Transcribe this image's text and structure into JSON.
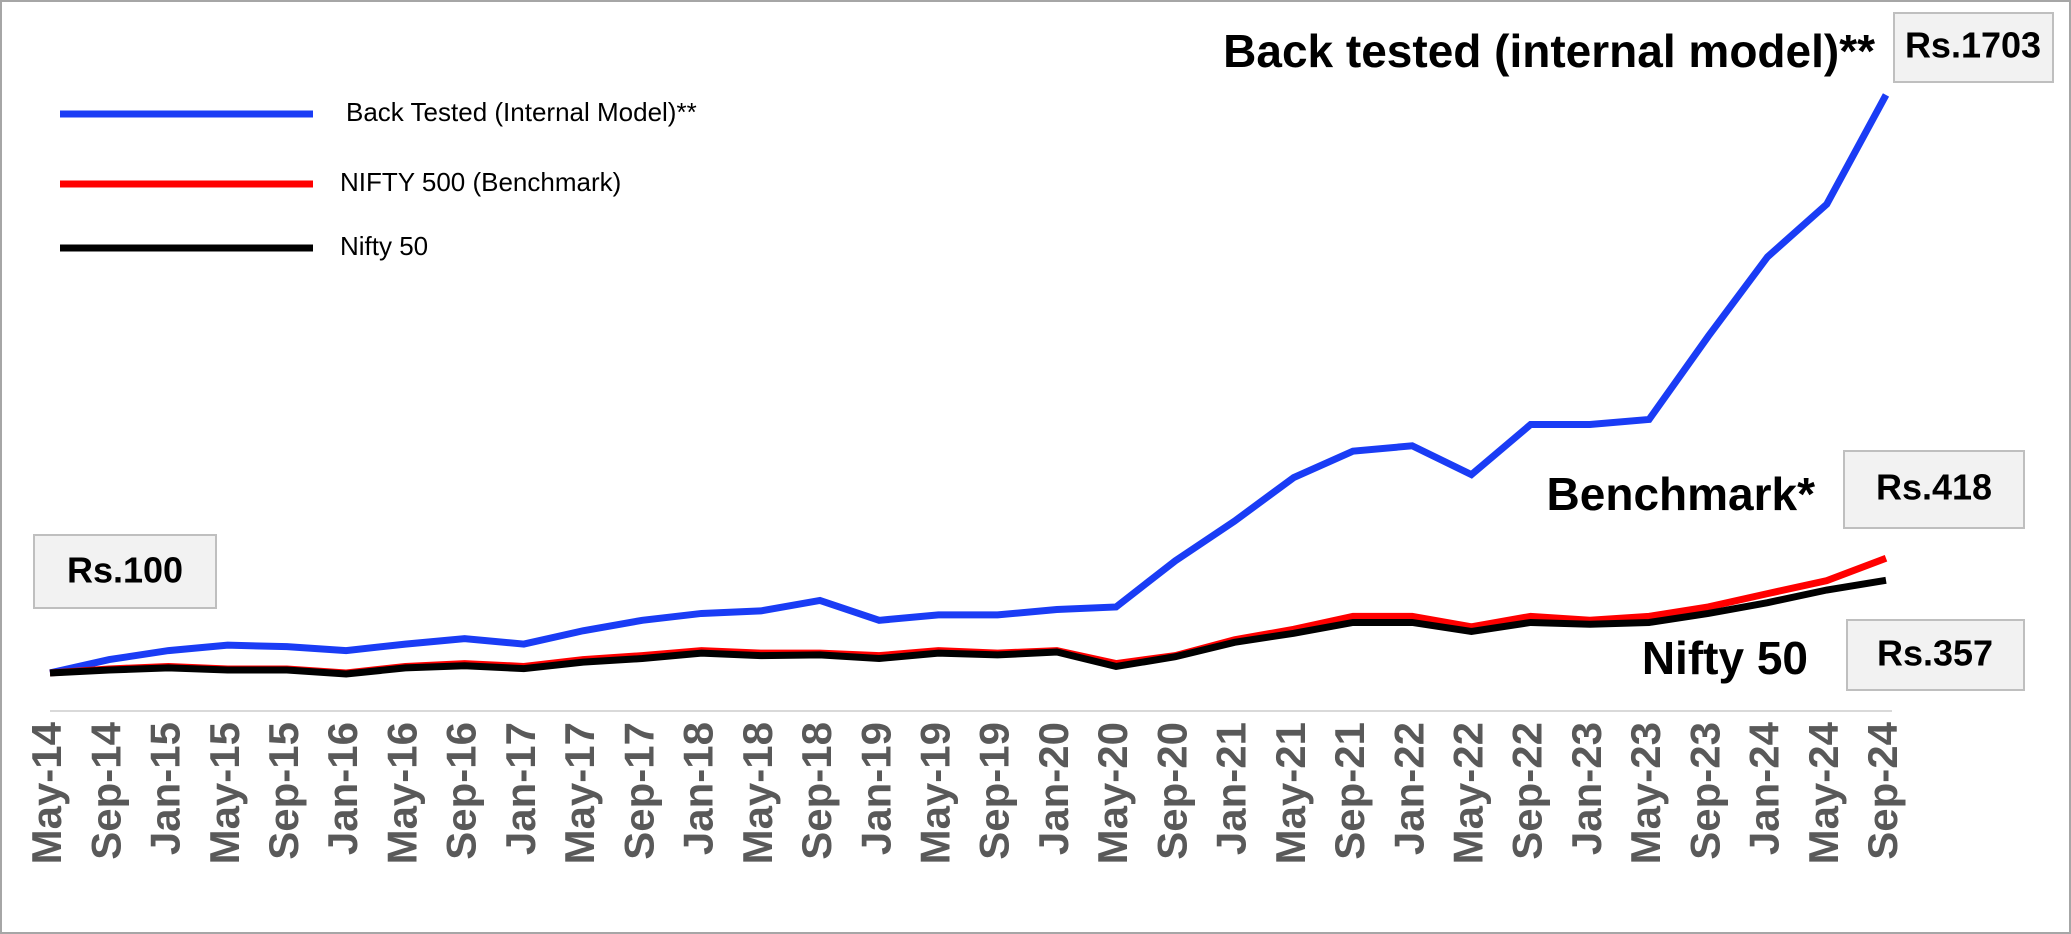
{
  "chart_data": {
    "type": "line",
    "categories": [
      "May-14",
      "Sep-14",
      "Jan-15",
      "May-15",
      "Sep-15",
      "Jan-16",
      "May-16",
      "Sep-16",
      "Jan-17",
      "May-17",
      "Sep-17",
      "Jan-18",
      "May-18",
      "Sep-18",
      "Jan-19",
      "May-19",
      "Sep-19",
      "Jan-20",
      "May-20",
      "Sep-20",
      "Jan-21",
      "May-21",
      "Sep-21",
      "Jan-22",
      "May-22",
      "Sep-22",
      "Jan-23",
      "May-23",
      "Sep-23",
      "Jan-24",
      "May-24",
      "Sep-24"
    ],
    "series": [
      {
        "name": "Back Tested (Internal Model)**",
        "color": "#1a3cf5",
        "values": [
          100,
          137,
          162,
          177,
          173,
          162,
          180,
          195,
          180,
          217,
          246,
          265,
          272,
          301,
          246,
          261,
          261,
          276,
          283,
          411,
          521,
          642,
          715,
          730,
          650,
          789,
          789,
          803,
          1034,
          1254,
          1400,
          1703
        ]
      },
      {
        "name": "NIFTY 500 (Benchmark)",
        "color": "#ff0000",
        "values": [
          100,
          111,
          118,
          111,
          111,
          100,
          118,
          126,
          118,
          137,
          148,
          162,
          155,
          155,
          148,
          162,
          155,
          162,
          126,
          148,
          192,
          221,
          257,
          257,
          228,
          257,
          246,
          257,
          283,
          320,
          356,
          418
        ]
      },
      {
        "name": "Nifty 50",
        "color": "#000000",
        "values": [
          100,
          108,
          114,
          108,
          108,
          97,
          114,
          120,
          112,
          130,
          140,
          155,
          148,
          150,
          140,
          155,
          150,
          158,
          118,
          145,
          185,
          210,
          240,
          240,
          215,
          240,
          235,
          240,
          265,
          295,
          330,
          357
        ]
      }
    ],
    "ylim": [
      0,
      1750
    ],
    "annotations": [
      "Back tested (internal model)**",
      "Benchmark*",
      "Nifty 50"
    ],
    "end_labels": [
      "Rs.1703",
      "Rs.418",
      "Rs.357",
      "Rs.100"
    ]
  }
}
